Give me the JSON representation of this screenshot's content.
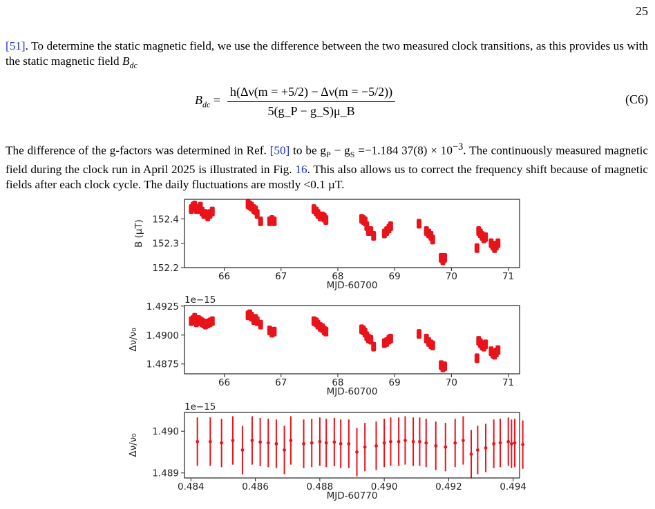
{
  "page": {
    "number": "25"
  },
  "para1": {
    "cite": "[51]",
    "text": ". To determine the static magnetic field, we use the difference between the two measured clock transitions, as this provides us with the static magnetic field ",
    "sym": "B",
    "sub": "dc"
  },
  "equation": {
    "lhs": "B",
    "lhs_sub": "dc",
    "numerator": "h(Δν(m = +5/2) − Δν(m = −5/2))",
    "denominator": "5(g_P − g_S)μ_B",
    "label": "(C6)"
  },
  "para2": {
    "t1": "The difference of the g-factors was determined in Ref. ",
    "cite1": "[50]",
    "t2": " to be g",
    "s1": "P",
    "t3": " − g",
    "s2": "S",
    "t4": " =−1.184 37(8) × 10",
    "sup": "−3",
    "t5": ". The continuously measured magnetic field during the clock run in April 2025 is illustrated in Fig. ",
    "cite2": "16",
    "t6": ". This also allows us to correct the frequency shift because of magnetic fields after each clock cycle. The daily fluctuations are mostly <0.1 µT."
  },
  "chart_data": [
    {
      "type": "scatter",
      "xlabel": "MJD-60700",
      "ylabel": "B (μT)",
      "xlim": [
        65.3,
        71.2
      ],
      "ylim": [
        152.2,
        152.48
      ],
      "xticks": [
        "66",
        "67",
        "68",
        "69",
        "70",
        "71"
      ],
      "yticks": [
        "152.2",
        "152.3",
        "152.4"
      ],
      "color": "#e8131b",
      "series": [
        {
          "values": [
            [
              65.42,
              152.44
            ],
            [
              65.45,
              152.45
            ],
            [
              65.48,
              152.455
            ],
            [
              65.51,
              152.44
            ],
            [
              65.55,
              152.44
            ],
            [
              65.58,
              152.45
            ],
            [
              65.61,
              152.43
            ],
            [
              65.64,
              152.42
            ],
            [
              65.67,
              152.42
            ],
            [
              65.71,
              152.41
            ],
            [
              65.75,
              152.42
            ],
            [
              65.79,
              152.43
            ],
            [
              66.42,
              152.46
            ],
            [
              66.45,
              152.455
            ],
            [
              66.48,
              152.45
            ],
            [
              66.52,
              152.44
            ],
            [
              66.55,
              152.435
            ],
            [
              66.58,
              152.42
            ],
            [
              66.64,
              152.39
            ],
            [
              66.8,
              152.39
            ],
            [
              66.84,
              152.395
            ],
            [
              66.88,
              152.39
            ],
            [
              67.58,
              152.44
            ],
            [
              67.62,
              152.43
            ],
            [
              67.65,
              152.42
            ],
            [
              67.69,
              152.41
            ],
            [
              67.73,
              152.41
            ],
            [
              67.76,
              152.405
            ],
            [
              67.79,
              152.395
            ],
            [
              68.42,
              152.4
            ],
            [
              68.45,
              152.395
            ],
            [
              68.48,
              152.39
            ],
            [
              68.51,
              152.37
            ],
            [
              68.54,
              152.35
            ],
            [
              68.58,
              152.35
            ],
            [
              68.63,
              152.33
            ],
            [
              68.82,
              152.34
            ],
            [
              68.86,
              152.35
            ],
            [
              68.9,
              152.36
            ],
            [
              68.93,
              152.37
            ],
            [
              69.43,
              152.38
            ],
            [
              69.56,
              152.35
            ],
            [
              69.6,
              152.34
            ],
            [
              69.64,
              152.33
            ],
            [
              69.67,
              152.315
            ],
            [
              69.82,
              152.24
            ],
            [
              69.85,
              152.23
            ],
            [
              69.88,
              152.24
            ],
            [
              70.45,
              152.28
            ],
            [
              70.48,
              152.35
            ],
            [
              70.51,
              152.34
            ],
            [
              70.54,
              152.33
            ],
            [
              70.57,
              152.32
            ],
            [
              70.6,
              152.325
            ],
            [
              70.7,
              152.3
            ],
            [
              70.73,
              152.29
            ],
            [
              70.76,
              152.28
            ],
            [
              70.79,
              152.29
            ],
            [
              70.82,
              152.3
            ]
          ]
        }
      ]
    },
    {
      "type": "scatter",
      "xlabel": "MJD-60700",
      "ylabel": "Δν/ν₀",
      "offset_text": "1e−15",
      "xlim": [
        65.3,
        71.2
      ],
      "ylim": [
        1.48665,
        1.49255
      ],
      "xticks": [
        "66",
        "67",
        "68",
        "69",
        "70",
        "71"
      ],
      "yticks": [
        "1.4875",
        "1.4900",
        "1.4925"
      ],
      "color": "#e8131b",
      "series": [
        {
          "values": [
            [
              65.42,
              1.4912
            ],
            [
              65.45,
              1.4913
            ],
            [
              65.48,
              1.4915
            ],
            [
              65.51,
              1.4911
            ],
            [
              65.55,
              1.4913
            ],
            [
              65.58,
              1.4912
            ],
            [
              65.61,
              1.4911
            ],
            [
              65.64,
              1.491
            ],
            [
              65.67,
              1.4909
            ],
            [
              65.71,
              1.491
            ],
            [
              65.75,
              1.4911
            ],
            [
              65.79,
              1.4912
            ],
            [
              66.42,
              1.4917
            ],
            [
              66.45,
              1.4918
            ],
            [
              66.48,
              1.4916
            ],
            [
              66.52,
              1.4913
            ],
            [
              66.55,
              1.4914
            ],
            [
              66.58,
              1.4912
            ],
            [
              66.64,
              1.4909
            ],
            [
              66.8,
              1.4904
            ],
            [
              66.84,
              1.4902
            ],
            [
              66.88,
              1.4903
            ],
            [
              67.58,
              1.4912
            ],
            [
              67.62,
              1.4911
            ],
            [
              67.65,
              1.4909
            ],
            [
              67.69,
              1.4907
            ],
            [
              67.73,
              1.4906
            ],
            [
              67.76,
              1.4904
            ],
            [
              67.79,
              1.4903
            ],
            [
              68.42,
              1.4905
            ],
            [
              68.45,
              1.4904
            ],
            [
              68.48,
              1.4902
            ],
            [
              68.51,
              1.4899
            ],
            [
              68.54,
              1.4897
            ],
            [
              68.58,
              1.4896
            ],
            [
              68.63,
              1.489
            ],
            [
              68.82,
              1.4893
            ],
            [
              68.86,
              1.4894
            ],
            [
              68.9,
              1.4896
            ],
            [
              68.93,
              1.4897
            ],
            [
              69.43,
              1.4901
            ],
            [
              69.56,
              1.4897
            ],
            [
              69.6,
              1.4894
            ],
            [
              69.64,
              1.4892
            ],
            [
              69.67,
              1.4891
            ],
            [
              69.82,
              1.4874
            ],
            [
              69.85,
              1.4872
            ],
            [
              69.88,
              1.4873
            ],
            [
              70.45,
              1.488
            ],
            [
              70.48,
              1.4895
            ],
            [
              70.51,
              1.4893
            ],
            [
              70.54,
              1.4891
            ],
            [
              70.57,
              1.489
            ],
            [
              70.6,
              1.4892
            ],
            [
              70.7,
              1.4886
            ],
            [
              70.73,
              1.4884
            ],
            [
              70.76,
              1.4883
            ],
            [
              70.79,
              1.4885
            ],
            [
              70.82,
              1.4887
            ]
          ]
        }
      ]
    },
    {
      "type": "scatter",
      "xlabel": "MJD-60770",
      "ylabel": "Δν/ν₀",
      "offset_text": "1e−15",
      "xlim": [
        0.4838,
        0.4942
      ],
      "ylim": [
        1.48888,
        1.49045
      ],
      "xticks": [
        "0.484",
        "0.486",
        "0.488",
        "0.490",
        "0.492",
        "0.494"
      ],
      "yticks": [
        "1.489",
        "1.490"
      ],
      "color": "#e8131b",
      "error": 0.00058,
      "series": [
        {
          "values": [
            [
              0.4842,
              1.48975
            ],
            [
              0.4846,
              1.48975
            ],
            [
              0.48495,
              1.48972
            ],
            [
              0.4853,
              1.48978
            ],
            [
              0.4856,
              1.48955
            ],
            [
              0.4859,
              1.48978
            ],
            [
              0.48615,
              1.48974
            ],
            [
              0.4864,
              1.48972
            ],
            [
              0.48665,
              1.4897
            ],
            [
              0.4869,
              1.48955
            ],
            [
              0.4871,
              1.48978
            ],
            [
              0.4875,
              1.4897
            ],
            [
              0.48775,
              1.48972
            ],
            [
              0.488,
              1.48975
            ],
            [
              0.4882,
              1.48972
            ],
            [
              0.48845,
              1.48974
            ],
            [
              0.48865,
              1.4897
            ],
            [
              0.4889,
              1.4897
            ],
            [
              0.48915,
              1.4895
            ],
            [
              0.4894,
              1.48962
            ],
            [
              0.48975,
              1.48965
            ],
            [
              0.49,
              1.48972
            ],
            [
              0.4902,
              1.48975
            ],
            [
              0.49045,
              1.48975
            ],
            [
              0.49065,
              1.48978
            ],
            [
              0.4909,
              1.48975
            ],
            [
              0.4911,
              1.48975
            ],
            [
              0.4913,
              1.48972
            ],
            [
              0.4916,
              1.48965
            ],
            [
              0.4919,
              1.48962
            ],
            [
              0.4922,
              1.48972
            ],
            [
              0.49245,
              1.48978
            ],
            [
              0.4927,
              1.48945
            ],
            [
              0.4929,
              1.48955
            ],
            [
              0.49315,
              1.4896
            ],
            [
              0.4934,
              1.4897
            ],
            [
              0.4936,
              1.48972
            ],
            [
              0.49385,
              1.48975
            ],
            [
              0.49405,
              1.48972
            ],
            [
              0.4943,
              1.48968
            ],
            [
              0.49395,
              1.4897
            ]
          ]
        }
      ]
    }
  ]
}
